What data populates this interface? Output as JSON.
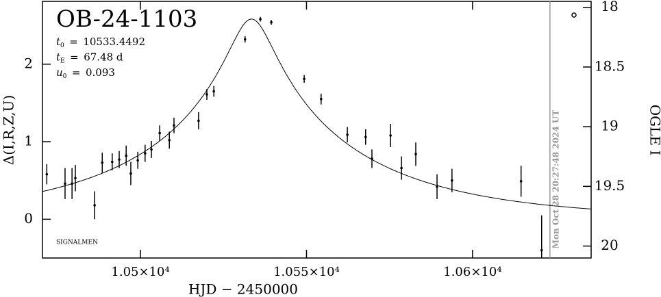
{
  "chart_data": {
    "type": "lightcurve",
    "title": "OB-24-1103",
    "params": [
      {
        "symbol": "t",
        "subscript": "0",
        "value": 10533.4492
      },
      {
        "symbol": "t",
        "subscript": "E",
        "value": 67.48,
        "unit": "d"
      },
      {
        "symbol": "u",
        "subscript": "0",
        "value": 0.093
      }
    ],
    "x_label": "HJD − 2450000",
    "y_label": "Δ(I,R,Z,U)",
    "y2_label": "OGLE I",
    "credit": "SIGNALMEN",
    "now_line": {
      "x": 10623.3,
      "label": "Mon Oct 28 20:27:48 2024 UT",
      "color": "#999999"
    },
    "x": [
      10471.8,
      10477.3,
      10479.4,
      10480.4,
      10486.2,
      10488.5,
      10491.5,
      10493.6,
      10495.7,
      10497.1,
      10499.2,
      10501.4,
      10503.3,
      10505.8,
      10508.7,
      10510.1,
      10517.5,
      10520.0,
      10522.1,
      10531.5,
      10536.1,
      10539.4,
      10549.3,
      10554.4,
      10562.3,
      10567.8,
      10569.7,
      10575.3,
      10578.6,
      10582.9,
      10589.3,
      10593.8,
      10614.6,
      10620.8
    ],
    "values": [
      0.58,
      0.46,
      0.46,
      0.53,
      0.18,
      0.73,
      0.74,
      0.77,
      0.82,
      0.59,
      0.76,
      0.85,
      0.9,
      1.11,
      1.02,
      1.21,
      1.27,
      1.61,
      1.65,
      2.32,
      2.58,
      2.54,
      1.81,
      1.55,
      1.09,
      1.06,
      0.78,
      1.08,
      0.66,
      0.84,
      0.42,
      0.5,
      0.49,
      -0.4
    ],
    "errors": [
      0.13,
      0.2,
      0.2,
      0.17,
      0.18,
      0.13,
      0.11,
      0.11,
      0.13,
      0.15,
      0.11,
      0.11,
      0.11,
      0.1,
      0.11,
      0.1,
      0.11,
      0.07,
      0.07,
      0.04,
      0.03,
      0.03,
      0.05,
      0.07,
      0.1,
      0.1,
      0.12,
      0.15,
      0.15,
      0.15,
      0.16,
      0.15,
      0.2,
      0.45
    ],
    "color": "#000000",
    "xlim": [
      10470.5,
      10635.7
    ],
    "xticks": [
      {
        "value": 10500,
        "label": "1.05×10⁴"
      },
      {
        "value": 10550,
        "label": "1.055×10⁴"
      },
      {
        "value": 10600,
        "label": "1.06×10⁴"
      }
    ],
    "ylim": [
      -0.5,
      2.81
    ],
    "yticks": [
      0,
      1,
      2
    ],
    "y2lim": [
      17.95,
      20.1
    ],
    "y2ticks": [
      18,
      18.5,
      19,
      19.5,
      20
    ]
  }
}
